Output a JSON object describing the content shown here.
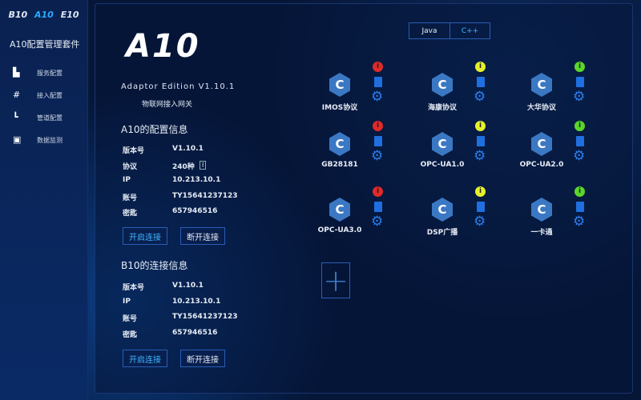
{
  "sidebar": {
    "brands": [
      "B10",
      "A10",
      "E10"
    ],
    "suite_title": "A10配置管理套件",
    "items": [
      {
        "label": "服务配置",
        "icon": "file-gear-icon"
      },
      {
        "label": "接入配置",
        "icon": "grid-icon"
      },
      {
        "label": "管道配置",
        "icon": "pipe-icon"
      },
      {
        "label": "数据监测",
        "icon": "monitor-icon"
      }
    ]
  },
  "header": {
    "logo": "A10",
    "edition": "Adaptor  Edition V1.10.1",
    "subtitle": "物联网接入网关"
  },
  "a10": {
    "title": "A10的配置信息",
    "rows": [
      {
        "k": "版本号",
        "v": "V1.10.1"
      },
      {
        "k": "协议",
        "v": "240种"
      },
      {
        "k": "IP",
        "v": "10.213.10.1"
      },
      {
        "k": "账号",
        "v": "TY15641237123"
      },
      {
        "k": "密匙",
        "v": "657946516"
      }
    ],
    "connect": "开启连接",
    "disconnect": "断开连接"
  },
  "b10": {
    "title": "B10的连接信息",
    "rows": [
      {
        "k": "版本号",
        "v": "V1.10.1"
      },
      {
        "k": "IP",
        "v": "10.213.10.1"
      },
      {
        "k": "账号",
        "v": "TY15641237123"
      },
      {
        "k": "密匙",
        "v": "657946516"
      }
    ],
    "connect": "开启连接",
    "disconnect": "断开连接"
  },
  "tabs": [
    {
      "label": "Java",
      "active": false
    },
    {
      "label": "C++",
      "active": true
    }
  ],
  "status_colors": {
    "red": "#e02a2a",
    "yellow": "#e6f02a",
    "green": "#5ad62a"
  },
  "protocols": [
    {
      "label": "IMOS协议",
      "status": "red"
    },
    {
      "label": "海康协议",
      "status": "yellow"
    },
    {
      "label": "大华协议",
      "status": "green"
    },
    {
      "label": "GB28181",
      "status": "red"
    },
    {
      "label": "OPC-UA1.0",
      "status": "yellow"
    },
    {
      "label": "OPC-UA2.0",
      "status": "green"
    },
    {
      "label": "OPC-UA3.0",
      "status": "red"
    },
    {
      "label": "DSP广播",
      "status": "yellow"
    },
    {
      "label": "一卡通",
      "status": "green"
    }
  ],
  "icon_glyphs": {
    "protocol": "C",
    "status": "i",
    "add": "+"
  }
}
